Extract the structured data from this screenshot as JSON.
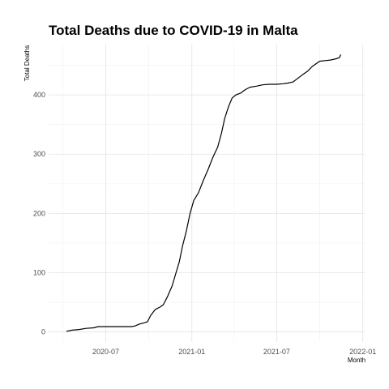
{
  "chart_data": {
    "type": "line",
    "title": "Total Deaths due to COVID-19 in Malta",
    "xlabel": "Month",
    "ylabel": "Total Deaths",
    "xlim": [
      "2020-03-01",
      "2022-01-05"
    ],
    "ylim": [
      -17,
      485
    ],
    "x_ticks": [
      {
        "date": "2020-07-01",
        "label": "2020-07"
      },
      {
        "date": "2021-01-01",
        "label": "2021-01"
      },
      {
        "date": "2021-07-01",
        "label": "2021-07"
      },
      {
        "date": "2022-01-01",
        "label": "2022-01"
      }
    ],
    "x_minor_ticks": [
      "2020-04-01",
      "2020-10-01",
      "2021-04-01",
      "2021-10-01"
    ],
    "y_ticks": [
      0,
      100,
      200,
      300,
      400
    ],
    "y_minor_ticks": [
      50,
      150,
      250,
      350,
      450
    ],
    "grid": true,
    "series": [
      {
        "name": "Total Deaths",
        "color": "#000000",
        "x": [
          "2020-04-08",
          "2020-04-20",
          "2020-05-05",
          "2020-05-20",
          "2020-06-05",
          "2020-06-15",
          "2020-07-01",
          "2020-07-20",
          "2020-08-10",
          "2020-08-25",
          "2020-09-01",
          "2020-09-10",
          "2020-09-20",
          "2020-09-28",
          "2020-10-05",
          "2020-10-15",
          "2020-10-25",
          "2020-11-01",
          "2020-11-10",
          "2020-11-20",
          "2020-11-28",
          "2020-12-05",
          "2020-12-12",
          "2020-12-20",
          "2020-12-28",
          "2021-01-05",
          "2021-01-15",
          "2021-01-25",
          "2021-02-05",
          "2021-02-15",
          "2021-02-25",
          "2021-03-05",
          "2021-03-12",
          "2021-03-20",
          "2021-03-28",
          "2021-04-05",
          "2021-04-15",
          "2021-04-25",
          "2021-05-05",
          "2021-05-20",
          "2021-06-01",
          "2021-06-15",
          "2021-07-01",
          "2021-07-15",
          "2021-07-25",
          "2021-08-05",
          "2021-08-15",
          "2021-08-25",
          "2021-09-05",
          "2021-09-15",
          "2021-10-01",
          "2021-10-15",
          "2021-10-25",
          "2021-11-05",
          "2021-11-12",
          "2021-11-15"
        ],
        "y": [
          1,
          3,
          4,
          6,
          7,
          9,
          9,
          9,
          9,
          9,
          10,
          13,
          15,
          17,
          28,
          38,
          42,
          46,
          60,
          78,
          100,
          118,
          145,
          170,
          200,
          222,
          235,
          255,
          275,
          295,
          312,
          335,
          360,
          380,
          395,
          400,
          403,
          409,
          413,
          415,
          417,
          418,
          418,
          419,
          420,
          422,
          428,
          434,
          440,
          448,
          457,
          458,
          459,
          461,
          463,
          468
        ]
      }
    ]
  }
}
